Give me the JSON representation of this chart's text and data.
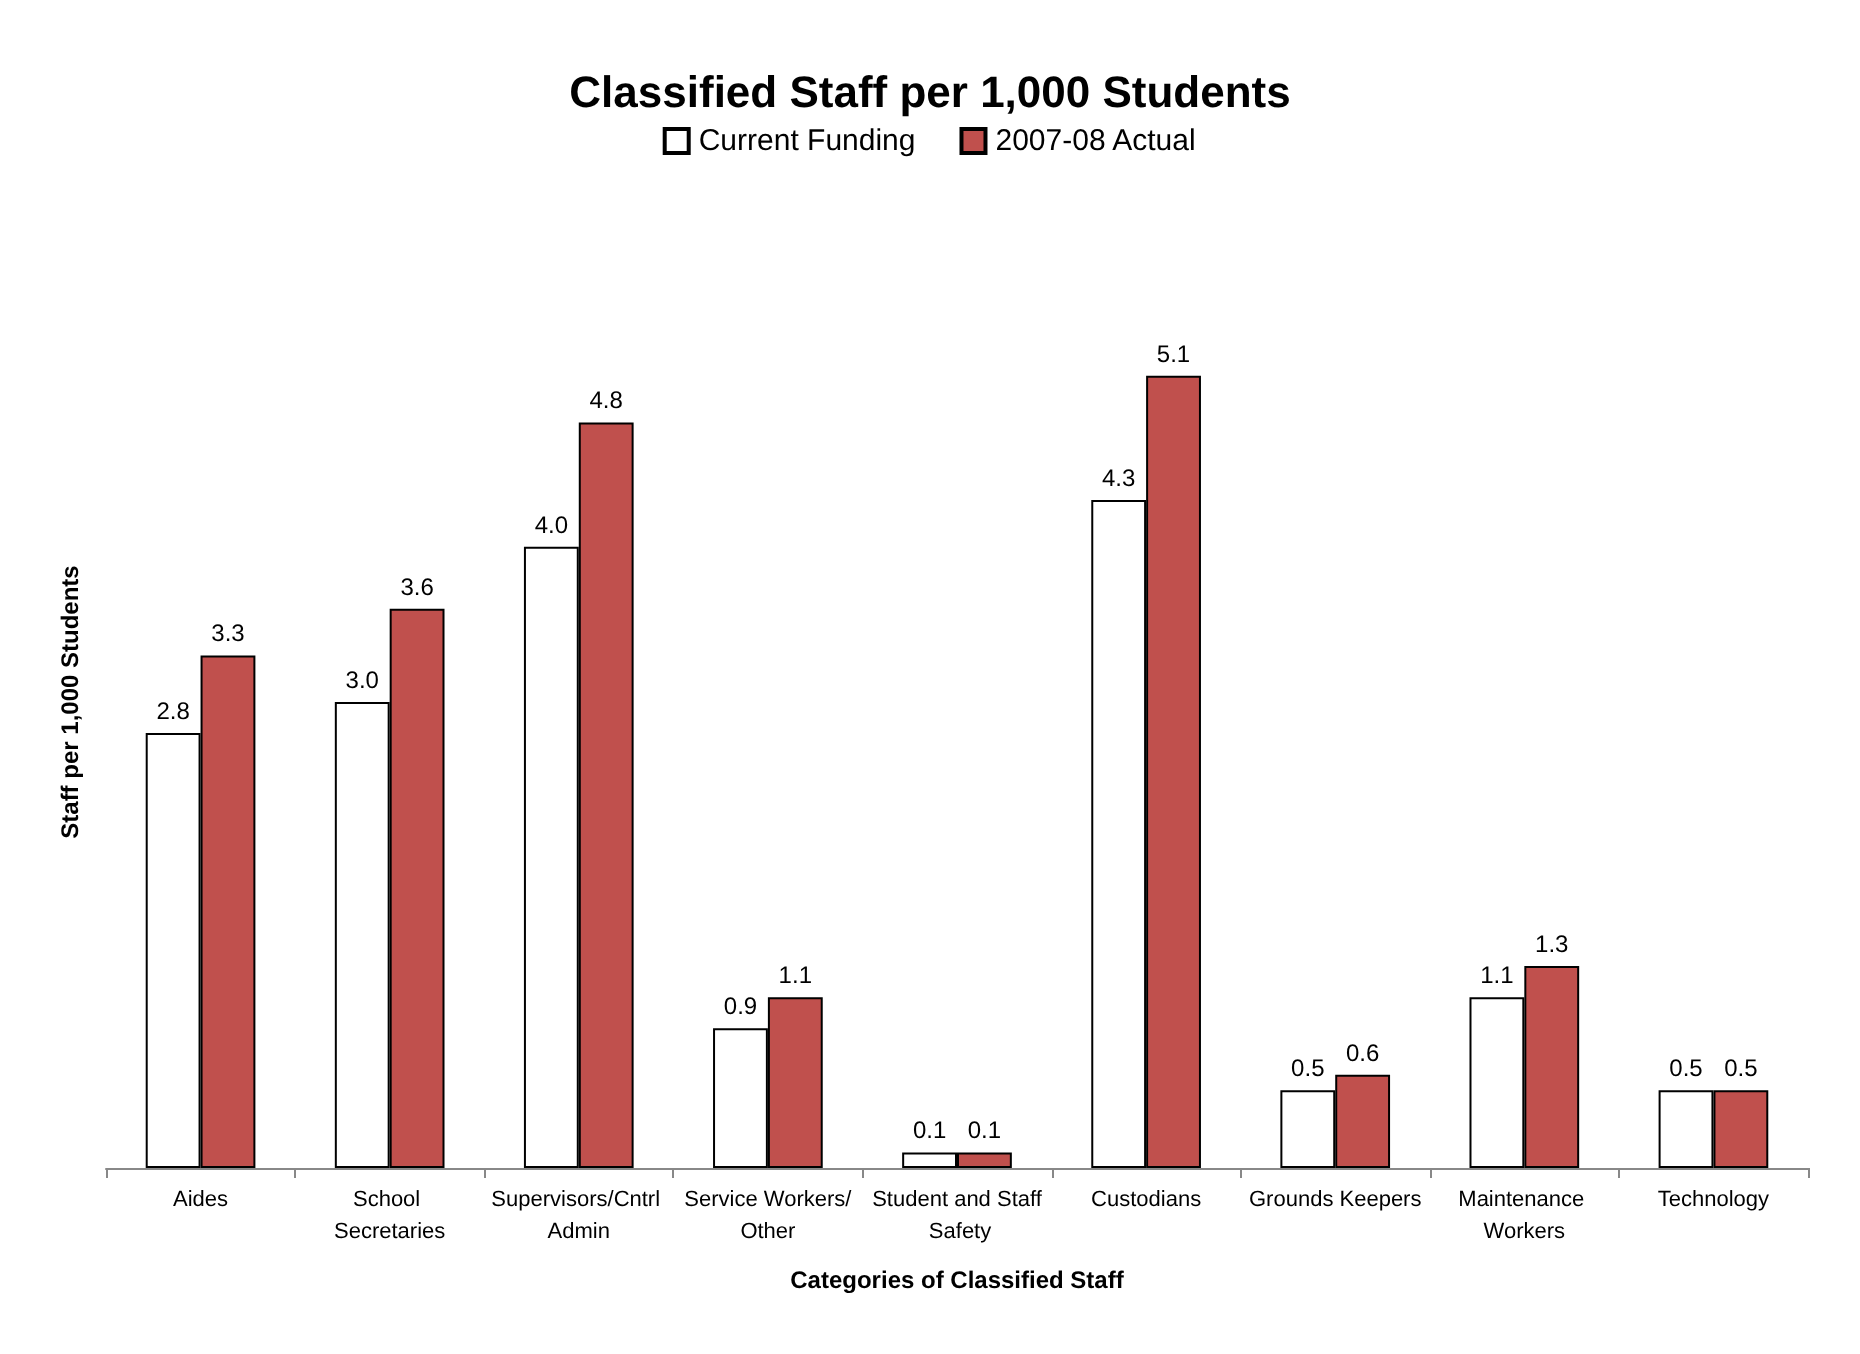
{
  "chart_data": {
    "type": "bar",
    "title": "Classified Staff per 1,000 Students",
    "xlabel": "Categories of Classified Staff",
    "ylabel": "Staff per 1,000 Students",
    "categories": [
      "Aides",
      "School Secretaries",
      "Supervisors/Cntrl Admin",
      "Service Workers/Other",
      "Student and Staff Safety",
      "Custodians",
      "Grounds Keepers",
      "Maintenance Workers",
      "Technology"
    ],
    "series": [
      {
        "name": "Current Funding",
        "color": "#ffffff",
        "values": [
          2.8,
          3.0,
          4.0,
          0.9,
          0.1,
          4.3,
          0.5,
          1.1,
          0.5
        ],
        "value_labels": [
          "2.8",
          "3.0",
          "4.0",
          "0.9",
          "0.1",
          "4.3",
          "0.5",
          "1.1",
          "0.5"
        ]
      },
      {
        "name": "2007-08 Actual",
        "color": "#c0504d",
        "values": [
          3.3,
          3.6,
          4.8,
          1.1,
          0.1,
          5.1,
          0.6,
          1.3,
          0.5
        ],
        "value_labels": [
          "3.3",
          "3.6",
          "4.8",
          "1.1",
          "0.1",
          "5.1",
          "0.6",
          "1.3",
          "0.5"
        ]
      }
    ],
    "legend": "top",
    "grid": false
  }
}
